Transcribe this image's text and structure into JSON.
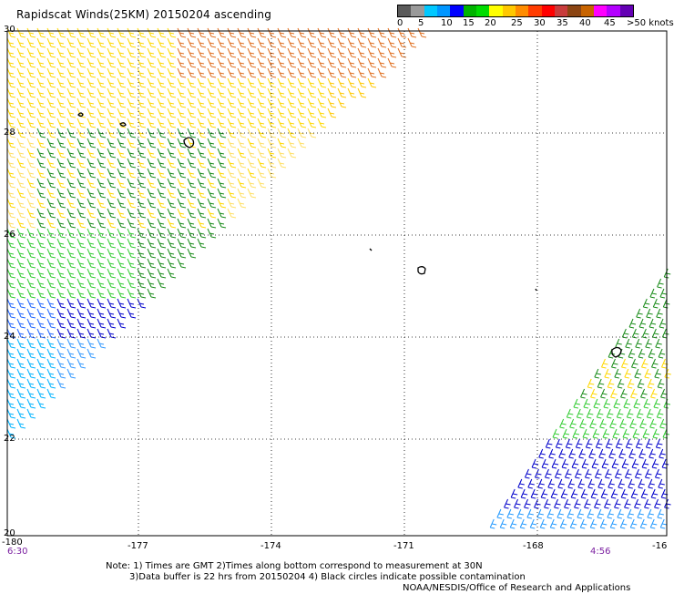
{
  "title": "Rapidscat Winds(25KM) 20150204 ascending",
  "scale": {
    "colors": [
      "#5a5a5a",
      "#9a9a9a",
      "#00c8ff",
      "#0096ff",
      "#0000ff",
      "#00b400",
      "#00dc00",
      "#ffff00",
      "#ffc800",
      "#ff8c00",
      "#ff3c00",
      "#ff0000",
      "#c83c3c",
      "#8b4513",
      "#c86400",
      "#ff00ff",
      "#b400ff",
      "#6400b4"
    ],
    "labels": [
      "0",
      "5",
      "10",
      "15",
      "20",
      "25",
      "30",
      "35",
      "40",
      "45",
      ">50 knots"
    ]
  },
  "axes": {
    "x_ticks": [
      "-180",
      "-177",
      "-174",
      "-171",
      "-168",
      "-16"
    ],
    "y_ticks": [
      "30",
      "28",
      "26",
      "24",
      "22",
      "20"
    ]
  },
  "times": {
    "left": "6:30",
    "right": "4:56"
  },
  "notes": [
    "Note: 1) Times are GMT 2)Times along bottom correspond to measurement at 30N",
    "3)Data buffer is 22 hrs from 20150204 4) Black circles indicate possible contamination",
    "NOAA/NESDIS/Office of Research and Applications"
  ]
}
